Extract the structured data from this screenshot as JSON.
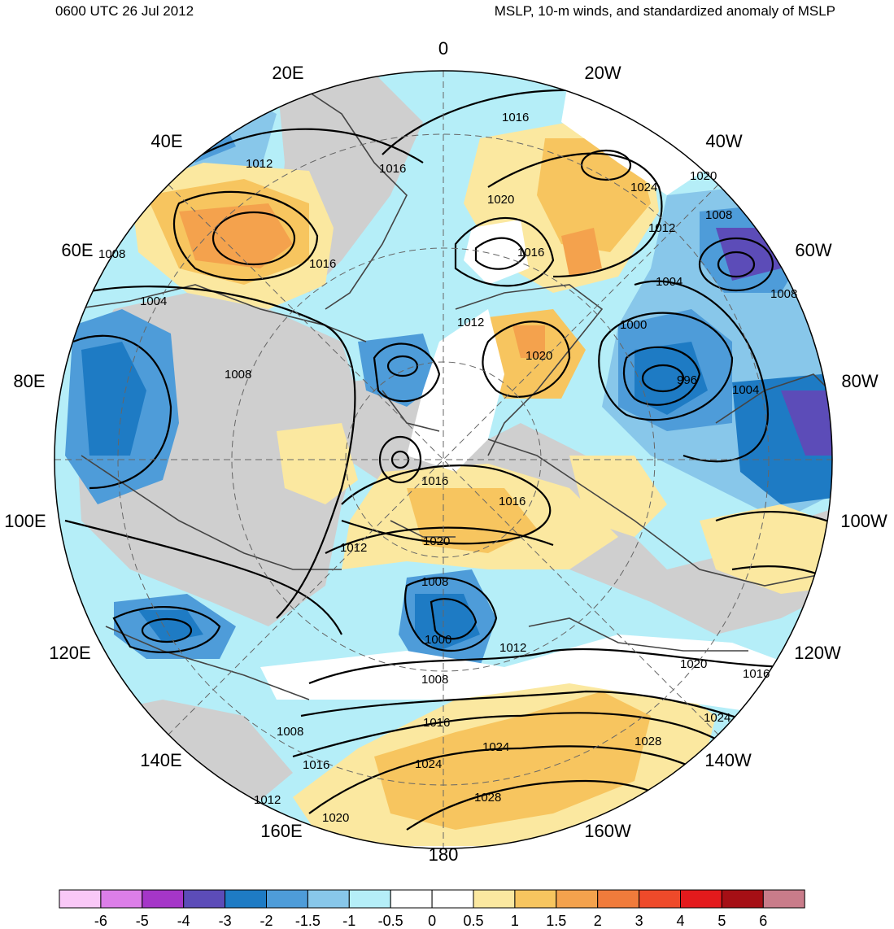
{
  "header": {
    "left_title": "0600 UTC 26 Jul 2012",
    "right_title": "MSLP, 10-m winds, and standardized anomaly of MSLP"
  },
  "longitude_labels": [
    "0",
    "20W",
    "40W",
    "60W",
    "80W",
    "100W",
    "120W",
    "140W",
    "160W",
    "180",
    "160E",
    "140E",
    "120E",
    "100E",
    "80E",
    "60E",
    "40E",
    "20E"
  ],
  "isobar_labels": [
    {
      "text": "1016",
      "lon": "20W",
      "lat_note": ""
    },
    {
      "text": "1012"
    },
    {
      "text": "1016"
    },
    {
      "text": "1020"
    },
    {
      "text": "1024"
    },
    {
      "text": "1020"
    },
    {
      "text": "1016"
    },
    {
      "text": "1016"
    },
    {
      "text": "1008"
    },
    {
      "text": "1012"
    },
    {
      "text": "1004"
    },
    {
      "text": "1008"
    },
    {
      "text": "1004"
    },
    {
      "text": "1012"
    },
    {
      "text": "1020"
    },
    {
      "text": "1000"
    },
    {
      "text": "996"
    },
    {
      "text": "1004"
    },
    {
      "text": "1008"
    },
    {
      "text": "1008"
    },
    {
      "text": "1016"
    },
    {
      "text": "1016"
    },
    {
      "text": "1012"
    },
    {
      "text": "1020"
    },
    {
      "text": "1008"
    },
    {
      "text": "1000"
    },
    {
      "text": "1012"
    },
    {
      "text": "1008"
    },
    {
      "text": "1020"
    },
    {
      "text": "1016"
    },
    {
      "text": "1008"
    },
    {
      "text": "1024"
    },
    {
      "text": "1024"
    },
    {
      "text": "1028"
    },
    {
      "text": "1028"
    },
    {
      "text": "1024"
    },
    {
      "text": "1016"
    },
    {
      "text": "1012"
    },
    {
      "text": "1016"
    },
    {
      "text": "1020"
    }
  ],
  "colorbar": {
    "colors": [
      "#f9c8f7",
      "#dc7ee8",
      "#a536c8",
      "#5c4cb8",
      "#1e7bc4",
      "#4e9cd9",
      "#88c7ea",
      "#b5eef8",
      "#ffffff",
      "#ffffff",
      "#fbe8a0",
      "#f7c55f",
      "#f4a24d",
      "#f07b3b",
      "#ee4a2a",
      "#e31a1c",
      "#a50f15",
      "#c97c8a"
    ],
    "tick_labels": [
      "-6",
      "-5",
      "-4",
      "-3",
      "-2",
      "-1.5",
      "-1",
      "-0.5",
      "0",
      "0.5",
      "1",
      "1.5",
      "2",
      "3",
      "4",
      "5",
      "6"
    ]
  },
  "colors": {
    "land": "#cfcfcf",
    "coast": "#444444",
    "isobar": "#000000"
  }
}
